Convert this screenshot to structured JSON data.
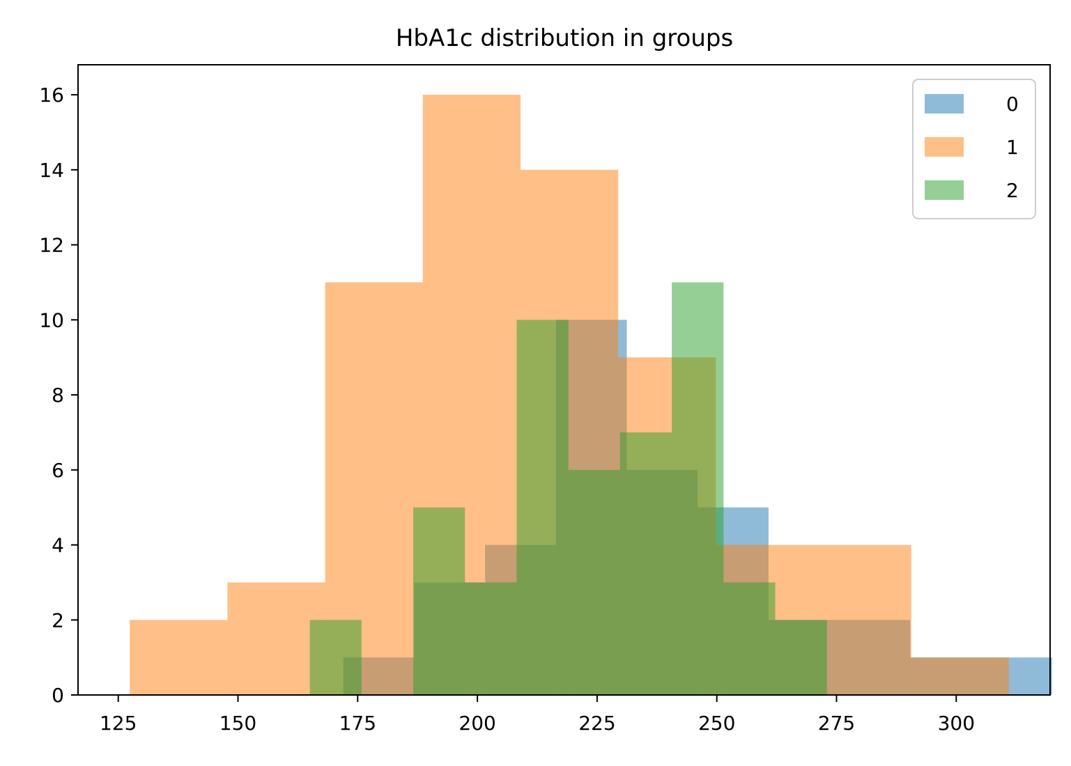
{
  "chart_data": {
    "type": "histogram",
    "title": "HbA1c distribution in groups",
    "xlabel": "",
    "ylabel": "",
    "xlim": [
      116.6,
      319.6
    ],
    "ylim": [
      0,
      16.8
    ],
    "x_ticks": [
      125,
      150,
      175,
      200,
      225,
      250,
      275,
      300
    ],
    "y_ticks": [
      0,
      2,
      4,
      6,
      8,
      10,
      12,
      14,
      16
    ],
    "grid": false,
    "legend_position": "top-right",
    "series": [
      {
        "name": "0",
        "color": "#1f77b4",
        "opacity": 0.5,
        "bins": [
          {
            "x0": 172.0,
            "x1": 186.8,
            "count": 1
          },
          {
            "x0": 186.8,
            "x1": 201.6,
            "count": 3
          },
          {
            "x0": 201.6,
            "x1": 216.4,
            "count": 4
          },
          {
            "x0": 216.4,
            "x1": 231.2,
            "count": 10
          },
          {
            "x0": 231.2,
            "x1": 246.0,
            "count": 6
          },
          {
            "x0": 246.0,
            "x1": 260.8,
            "count": 5
          },
          {
            "x0": 260.8,
            "x1": 275.6,
            "count": 2
          },
          {
            "x0": 275.6,
            "x1": 290.4,
            "count": 2
          },
          {
            "x0": 290.4,
            "x1": 305.2,
            "count": 1
          },
          {
            "x0": 305.2,
            "x1": 320.0,
            "count": 1
          }
        ]
      },
      {
        "name": "1",
        "color": "#ff7f0e",
        "opacity": 0.5,
        "bins": [
          {
            "x0": 127.4,
            "x1": 147.8,
            "count": 2
          },
          {
            "x0": 147.8,
            "x1": 168.2,
            "count": 3
          },
          {
            "x0": 168.2,
            "x1": 188.6,
            "count": 11
          },
          {
            "x0": 188.6,
            "x1": 209.0,
            "count": 16
          },
          {
            "x0": 209.0,
            "x1": 229.4,
            "count": 14
          },
          {
            "x0": 229.4,
            "x1": 249.8,
            "count": 9
          },
          {
            "x0": 249.8,
            "x1": 270.2,
            "count": 4
          },
          {
            "x0": 270.2,
            "x1": 290.6,
            "count": 4
          },
          {
            "x0": 290.6,
            "x1": 311.0,
            "count": 1
          }
        ]
      },
      {
        "name": "2",
        "color": "#2ca02c",
        "opacity": 0.5,
        "bins": [
          {
            "x0": 165.0,
            "x1": 175.8,
            "count": 2
          },
          {
            "x0": 175.8,
            "x1": 186.6,
            "count": 0
          },
          {
            "x0": 186.6,
            "x1": 197.4,
            "count": 5
          },
          {
            "x0": 197.4,
            "x1": 208.2,
            "count": 3
          },
          {
            "x0": 208.2,
            "x1": 219.0,
            "count": 10
          },
          {
            "x0": 219.0,
            "x1": 229.8,
            "count": 6
          },
          {
            "x0": 229.8,
            "x1": 240.6,
            "count": 7
          },
          {
            "x0": 240.6,
            "x1": 251.4,
            "count": 11
          },
          {
            "x0": 251.4,
            "x1": 262.2,
            "count": 3
          },
          {
            "x0": 262.2,
            "x1": 273.0,
            "count": 2
          }
        ]
      }
    ]
  }
}
